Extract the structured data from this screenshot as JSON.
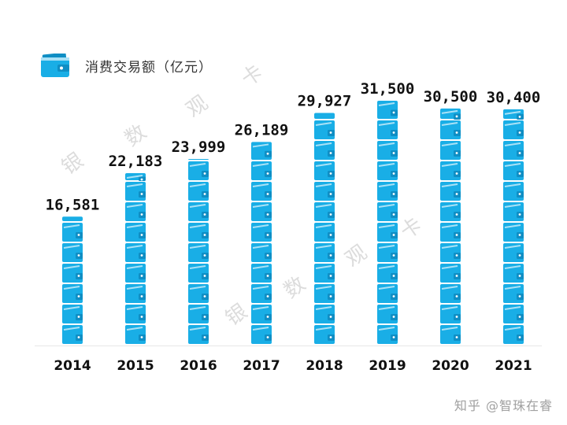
{
  "colors": {
    "accent": "#19aee6",
    "accent_dark": "#0f8ec4",
    "stripe": "#a9e1f6",
    "value_text": "#111111",
    "axis": "#e6e6e6"
  },
  "legend": {
    "icon": "wallet-icon",
    "label": "消费交易额（亿元）"
  },
  "watermarks": [
    "银",
    "数",
    "观",
    "卡",
    "银",
    "数",
    "观",
    "卡"
  ],
  "footer_mark": "知乎 @智珠在睿",
  "chart_data": {
    "type": "bar",
    "title": "",
    "xlabel": "",
    "ylabel": "",
    "series": [
      {
        "name": "消费交易额（亿元）",
        "values": [
          16581,
          22183,
          23999,
          26189,
          29927,
          31500,
          30500,
          30400
        ]
      }
    ],
    "categories": [
      "2014",
      "2015",
      "2016",
      "2017",
      "2018",
      "2019",
      "2020",
      "2021"
    ],
    "value_labels": [
      "16,581",
      "22,183",
      "23,999",
      "26,189",
      "29,927",
      "31,500",
      "30,500",
      "30,400"
    ],
    "ylim": [
      0,
      31500
    ],
    "grid": false,
    "legend_position": "top-left"
  }
}
